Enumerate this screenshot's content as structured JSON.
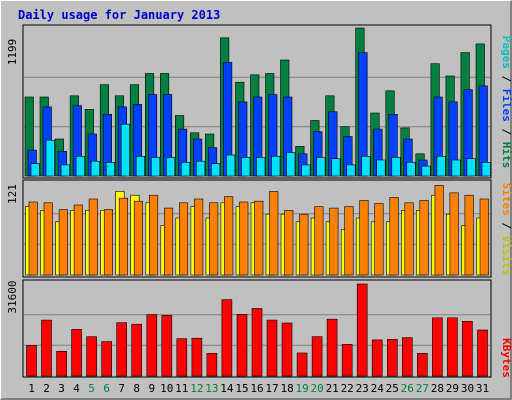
{
  "title": "Daily usage for January 2013",
  "colors": {
    "background": "#c0c0c0",
    "title": "#0000cc",
    "hits": "#008040",
    "files": "#0040ff",
    "pages": "#00e0ff",
    "visits": "#ffff00",
    "sites": "#ff8000",
    "kbytes": "#ff0000",
    "weekday_label": "#000000",
    "weekend_label": "#008040"
  },
  "legend_top": [
    {
      "text": "Pages",
      "color": "#00c0c0"
    },
    {
      "text": " / ",
      "color": "#000000"
    },
    {
      "text": "Files",
      "color": "#0040ff"
    },
    {
      "text": " / ",
      "color": "#000000"
    },
    {
      "text": "Hits",
      "color": "#008040"
    }
  ],
  "legend_mid": [
    {
      "text": "Sites",
      "color": "#ff8000"
    },
    {
      "text": " / ",
      "color": "#000000"
    },
    {
      "text": "Visits",
      "color": "#c0c000"
    }
  ],
  "legend_bottom": [
    {
      "text": "KBytes",
      "color": "#ff0000"
    }
  ],
  "chart_data": [
    {
      "type": "bar",
      "panel": "hits-files-pages",
      "ymax_label": "1199",
      "ylim": [
        0,
        1199
      ],
      "x": [
        "1",
        "2",
        "3",
        "4",
        "5",
        "6",
        "7",
        "8",
        "9",
        "10",
        "11",
        "12",
        "13",
        "14",
        "15",
        "16",
        "17",
        "18",
        "19",
        "20",
        "21",
        "22",
        "23",
        "24",
        "25",
        "26",
        "27",
        "28",
        "29",
        "30",
        "31"
      ],
      "weekend_days": [
        "5",
        "6",
        "12",
        "13",
        "19",
        "20",
        "26",
        "27"
      ],
      "series": [
        {
          "name": "Hits",
          "values": [
            640,
            640,
            300,
            650,
            540,
            740,
            650,
            740,
            830,
            830,
            490,
            350,
            340,
            1120,
            760,
            820,
            830,
            940,
            240,
            450,
            650,
            400,
            1200,
            510,
            690,
            390,
            180,
            910,
            810,
            1000,
            1070
          ]
        },
        {
          "name": "Files",
          "values": [
            210,
            560,
            200,
            570,
            340,
            500,
            560,
            580,
            660,
            660,
            380,
            300,
            230,
            920,
            600,
            640,
            660,
            640,
            180,
            360,
            520,
            320,
            1000,
            380,
            500,
            300,
            130,
            640,
            600,
            700,
            730
          ]
        },
        {
          "name": "Pages",
          "values": [
            100,
            290,
            90,
            160,
            120,
            110,
            420,
            160,
            150,
            150,
            110,
            120,
            100,
            170,
            150,
            150,
            160,
            190,
            90,
            150,
            140,
            90,
            160,
            130,
            150,
            110,
            80,
            160,
            130,
            140,
            110
          ]
        }
      ]
    },
    {
      "type": "bar",
      "panel": "visits-sites",
      "ymax_label": "121",
      "ylim": [
        0,
        121
      ],
      "x": [
        "1",
        "2",
        "3",
        "4",
        "5",
        "6",
        "7",
        "8",
        "9",
        "10",
        "11",
        "12",
        "13",
        "14",
        "15",
        "16",
        "17",
        "18",
        "19",
        "20",
        "21",
        "22",
        "23",
        "24",
        "25",
        "26",
        "27",
        "28",
        "29",
        "30",
        "31"
      ],
      "series": [
        {
          "name": "Visits",
          "values": [
            90,
            85,
            70,
            85,
            85,
            85,
            110,
            105,
            95,
            65,
            75,
            90,
            75,
            95,
            90,
            95,
            80,
            80,
            70,
            75,
            70,
            60,
            75,
            70,
            70,
            85,
            85,
            105,
            80,
            65,
            75
          ]
        },
        {
          "name": "Sites",
          "values": [
            96,
            95,
            86,
            92,
            100,
            86,
            101,
            97,
            105,
            88,
            95,
            100,
            95,
            103,
            96,
            97,
            110,
            85,
            80,
            90,
            88,
            90,
            98,
            94,
            102,
            95,
            98,
            118,
            108,
            105,
            100
          ]
        }
      ]
    },
    {
      "type": "bar",
      "panel": "kbytes",
      "ymax_label": "31600",
      "ylim": [
        0,
        31600
      ],
      "x": [
        "1",
        "2",
        "3",
        "4",
        "5",
        "6",
        "7",
        "8",
        "9",
        "10",
        "11",
        "12",
        "13",
        "14",
        "15",
        "16",
        "17",
        "18",
        "19",
        "20",
        "21",
        "22",
        "23",
        "24",
        "25",
        "26",
        "27",
        "28",
        "29",
        "30",
        "31"
      ],
      "series": [
        {
          "name": "KBytes",
          "values": [
            10500,
            19200,
            8500,
            16000,
            13500,
            11800,
            18300,
            17800,
            21100,
            20800,
            12800,
            13000,
            7800,
            26200,
            21200,
            23200,
            19200,
            18200,
            7900,
            13500,
            19500,
            10900,
            31800,
            12400,
            12600,
            13200,
            7800,
            20000,
            20000,
            18800,
            15800
          ]
        }
      ]
    }
  ]
}
